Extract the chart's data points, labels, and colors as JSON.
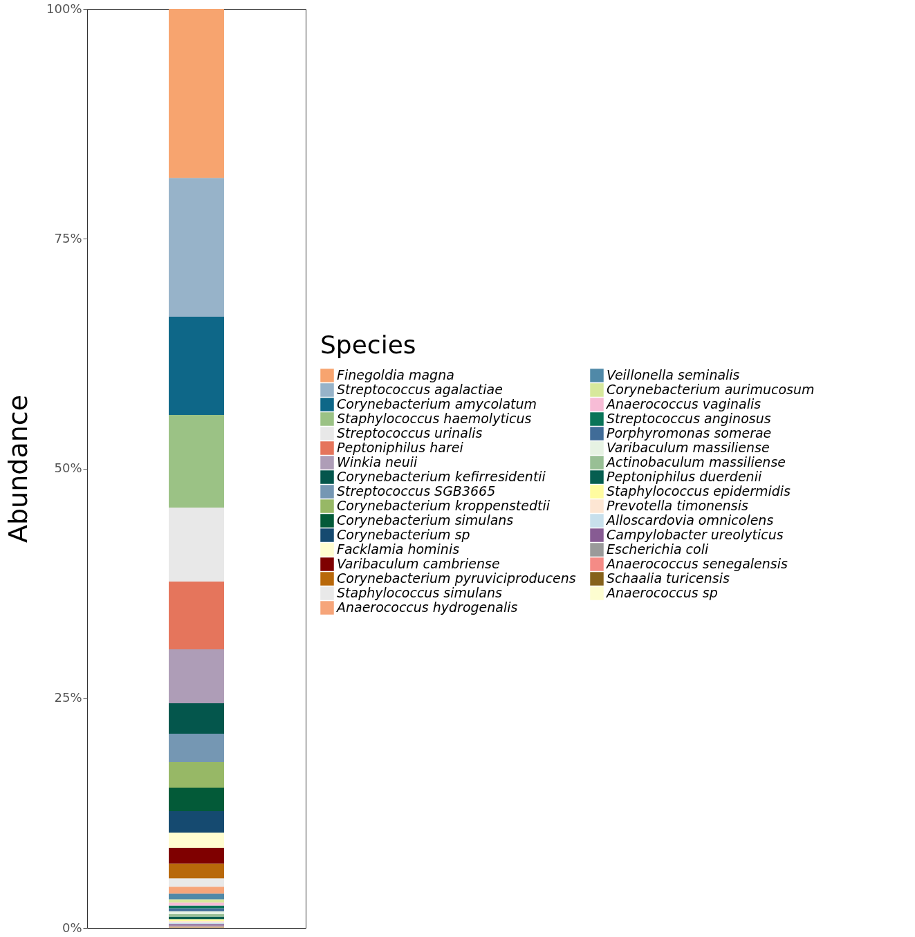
{
  "chart_data": {
    "type": "bar",
    "stacked": true,
    "ylabel": "Abundance",
    "legend_title": "Species",
    "legend": "right",
    "grid": false,
    "categories": [
      null
    ],
    "ylim": [
      0,
      100
    ],
    "yticks": [
      {
        "value": 0,
        "label": "0%"
      },
      {
        "value": 25,
        "label": "25%"
      },
      {
        "value": 50,
        "label": "50%"
      },
      {
        "value": 75,
        "label": "75%"
      },
      {
        "value": 100,
        "label": "100%"
      }
    ],
    "series": [
      {
        "name": "Anaerococcus sp",
        "color": "#fdfdd0",
        "values": [
          0.04
        ]
      },
      {
        "name": "Schaalia turicensis",
        "color": "#86621b",
        "values": [
          0.05
        ]
      },
      {
        "name": "Anaerococcus senegalensis",
        "color": "#f48b86",
        "values": [
          0.07
        ]
      },
      {
        "name": "Escherichia coli",
        "color": "#9a9a9a",
        "values": [
          0.1
        ]
      },
      {
        "name": "Campylobacter ureolyticus",
        "color": "#875b93",
        "values": [
          0.17
        ]
      },
      {
        "name": "Alloscardovia omnicolens",
        "color": "#c8e0ec",
        "values": [
          0.15
        ]
      },
      {
        "name": "Prevotella timonensis",
        "color": "#fde6d3",
        "values": [
          0.17
        ]
      },
      {
        "name": "Staphylococcus epidermidis",
        "color": "#fffca0",
        "values": [
          0.2
        ]
      },
      {
        "name": "Peptoniphilus duerdenii",
        "color": "#065e50",
        "values": [
          0.3
        ]
      },
      {
        "name": "Actinobaculum massiliense",
        "color": "#98bf95",
        "values": [
          0.25
        ]
      },
      {
        "name": "Varibaculum massiliense",
        "color": "#e6f2e3",
        "values": [
          0.32
        ]
      },
      {
        "name": "Porphyromonas somerae",
        "color": "#406c98",
        "values": [
          0.33
        ]
      },
      {
        "name": "Streptococcus anginosus",
        "color": "#0a7458",
        "values": [
          0.3
        ]
      },
      {
        "name": "Anaerococcus vaginalis",
        "color": "#f7bcd6",
        "values": [
          0.32
        ]
      },
      {
        "name": "Corynebacterium aurimucosum",
        "color": "#d7e89c",
        "values": [
          0.35
        ]
      },
      {
        "name": "Veillonella seminalis",
        "color": "#5089a8",
        "values": [
          0.62
        ]
      },
      {
        "name": "Anaerococcus hydrogenalis",
        "color": "#f6a57a",
        "values": [
          0.75
        ]
      },
      {
        "name": "Staphylococcus simulans",
        "color": "#e9e9e9",
        "values": [
          0.9
        ]
      },
      {
        "name": "Corynebacterium pyruviciproducens",
        "color": "#b8680a",
        "values": [
          1.63
        ]
      },
      {
        "name": "Varibaculum cambriense",
        "color": "#7f0000",
        "values": [
          1.71
        ]
      },
      {
        "name": "Facklamia hominis",
        "color": "#fffdd0",
        "values": [
          1.66
        ]
      },
      {
        "name": "Corynebacterium sp",
        "color": "#154a70",
        "values": [
          2.33
        ]
      },
      {
        "name": "Corynebacterium simulans",
        "color": "#035a38",
        "values": [
          2.56
        ]
      },
      {
        "name": "Corynebacterium kroppenstedtii",
        "color": "#97b866",
        "values": [
          2.78
        ]
      },
      {
        "name": "Streptococcus SGB3665",
        "color": "#7597b3",
        "values": [
          3.09
        ]
      },
      {
        "name": "Corynebacterium kefirresidentii",
        "color": "#04564c",
        "values": [
          3.31
        ]
      },
      {
        "name": "Winkia neuii",
        "color": "#ae9db7",
        "values": [
          5.87
        ]
      },
      {
        "name": "Peptoniphilus harei",
        "color": "#e5755c",
        "values": [
          7.37
        ]
      },
      {
        "name": "Streptococcus urinalis",
        "color": "#e8e8e8",
        "values": [
          8.05
        ]
      },
      {
        "name": "Staphylococcus haemolyticus",
        "color": "#9bc285",
        "values": [
          10.08
        ]
      },
      {
        "name": "Corynebacterium amycolatum",
        "color": "#0e6788",
        "values": [
          10.68
        ]
      },
      {
        "name": "Streptococcus agalactiae",
        "color": "#97b3c9",
        "values": [
          15.12
        ]
      },
      {
        "name": "Finegoldia magna",
        "color": "#f7a46f",
        "values": [
          18.37
        ]
      }
    ]
  }
}
